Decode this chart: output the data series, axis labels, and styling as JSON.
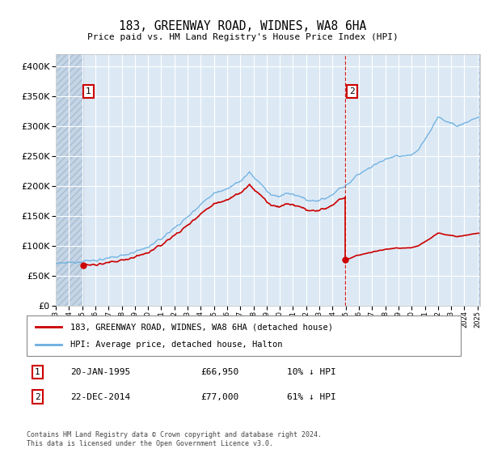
{
  "title": "183, GREENWAY ROAD, WIDNES, WA8 6HA",
  "subtitle": "Price paid vs. HM Land Registry's House Price Index (HPI)",
  "legend_line1": "183, GREENWAY ROAD, WIDNES, WA8 6HA (detached house)",
  "legend_line2": "HPI: Average price, detached house, Halton",
  "annotation1": {
    "num": "1",
    "date": "20-JAN-1995",
    "price": "£66,950",
    "pct": "10% ↓ HPI"
  },
  "annotation2": {
    "num": "2",
    "date": "22-DEC-2014",
    "price": "£77,000",
    "pct": "61% ↓ HPI"
  },
  "footer": "Contains HM Land Registry data © Crown copyright and database right 2024.\nThis data is licensed under the Open Government Licence v3.0.",
  "sale1_date": 1995.08,
  "sale1_price": 66950,
  "sale2_date": 2014.97,
  "sale2_price": 77000,
  "hpi_color": "#6aaee0",
  "sale_color": "#cc0000",
  "background_plot": "#dce9f5",
  "background_hatch": "#c5d5e5",
  "dashed_line_color": "#cc0000",
  "ylim": [
    0,
    420000
  ],
  "yticks": [
    0,
    50000,
    100000,
    150000,
    200000,
    250000,
    300000,
    350000,
    400000
  ],
  "hpi_anchors_t": [
    1993.0,
    1994.0,
    1995.0,
    1996.0,
    1997.0,
    1998.0,
    1999.0,
    2000.0,
    2001.0,
    2002.0,
    2003.0,
    2004.0,
    2005.0,
    2006.0,
    2007.0,
    2007.7,
    2008.5,
    2009.3,
    2010.0,
    2010.5,
    2011.0,
    2011.5,
    2012.0,
    2012.5,
    2013.0,
    2013.5,
    2014.0,
    2014.5,
    2015.0,
    2015.5,
    2016.0,
    2017.0,
    2018.0,
    2019.0,
    2020.0,
    2020.5,
    2021.0,
    2021.5,
    2022.0,
    2022.5,
    2023.0,
    2023.5,
    2024.0,
    2024.5,
    2025.0
  ],
  "hpi_anchors_p": [
    70000,
    72000,
    74500,
    76000,
    79000,
    84000,
    90000,
    98000,
    112000,
    130000,
    148000,
    170000,
    188000,
    196000,
    208000,
    222000,
    205000,
    185000,
    183000,
    188000,
    185000,
    182000,
    178000,
    175000,
    176000,
    180000,
    186000,
    196000,
    200000,
    210000,
    220000,
    233000,
    245000,
    250000,
    252000,
    260000,
    278000,
    295000,
    315000,
    310000,
    305000,
    300000,
    305000,
    310000,
    315000
  ]
}
